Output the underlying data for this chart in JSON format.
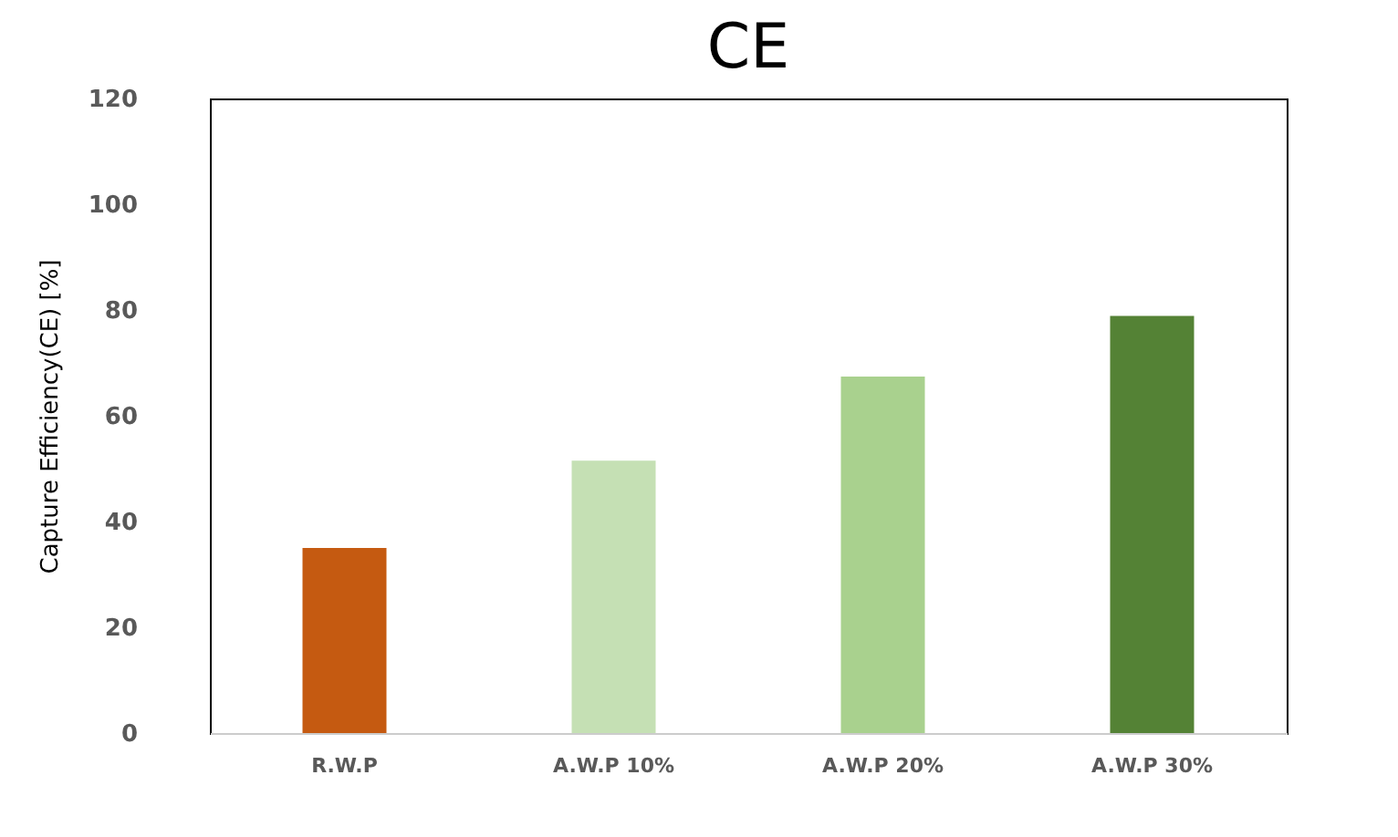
{
  "chart_data": {
    "type": "bar",
    "title": "CE",
    "ylabel": "Capture Efficiency(CE) [%]",
    "categories": [
      "R.W.P",
      "A.W.P 10%",
      "A.W.P 20%",
      "A.W.P 30%"
    ],
    "values": [
      35,
      51.5,
      67.4,
      78.9
    ],
    "colors": [
      "#c55a11",
      "#c5e0b4",
      "#a9d18e",
      "#548235"
    ],
    "ylim": [
      0,
      120
    ],
    "yticks": [
      0,
      20,
      40,
      60,
      80,
      100,
      120
    ],
    "grid": false,
    "legend": false
  }
}
